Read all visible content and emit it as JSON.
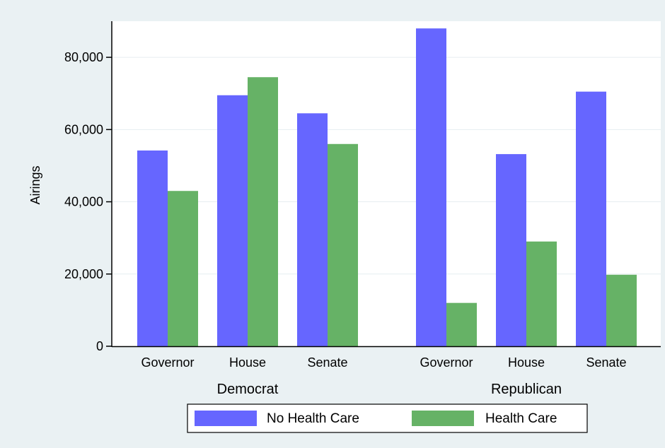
{
  "chart_data": {
    "type": "bar",
    "ylabel": "Airings",
    "ylim": [
      0,
      90000
    ],
    "yticks": [
      0,
      20000,
      40000,
      60000,
      80000
    ],
    "ytick_labels": [
      "0",
      "20,000",
      "40,000",
      "60,000",
      "80,000"
    ],
    "grid": true,
    "groups": [
      {
        "label": "Democrat",
        "categories": [
          "Governor",
          "House",
          "Senate"
        ]
      },
      {
        "label": "Republican",
        "categories": [
          "Governor",
          "House",
          "Senate"
        ]
      }
    ],
    "series": [
      {
        "name": "No Health Care",
        "color": "#6666ff",
        "values": [
          54200,
          69500,
          64500,
          88000,
          53200,
          70500
        ]
      },
      {
        "name": "Health Care",
        "color": "#66b266",
        "values": [
          43000,
          74500,
          56000,
          12000,
          29000,
          19800
        ]
      }
    ],
    "legend_position": "bottom",
    "background_color": "#eaf1f3",
    "plot_background_color": "#ffffff"
  }
}
